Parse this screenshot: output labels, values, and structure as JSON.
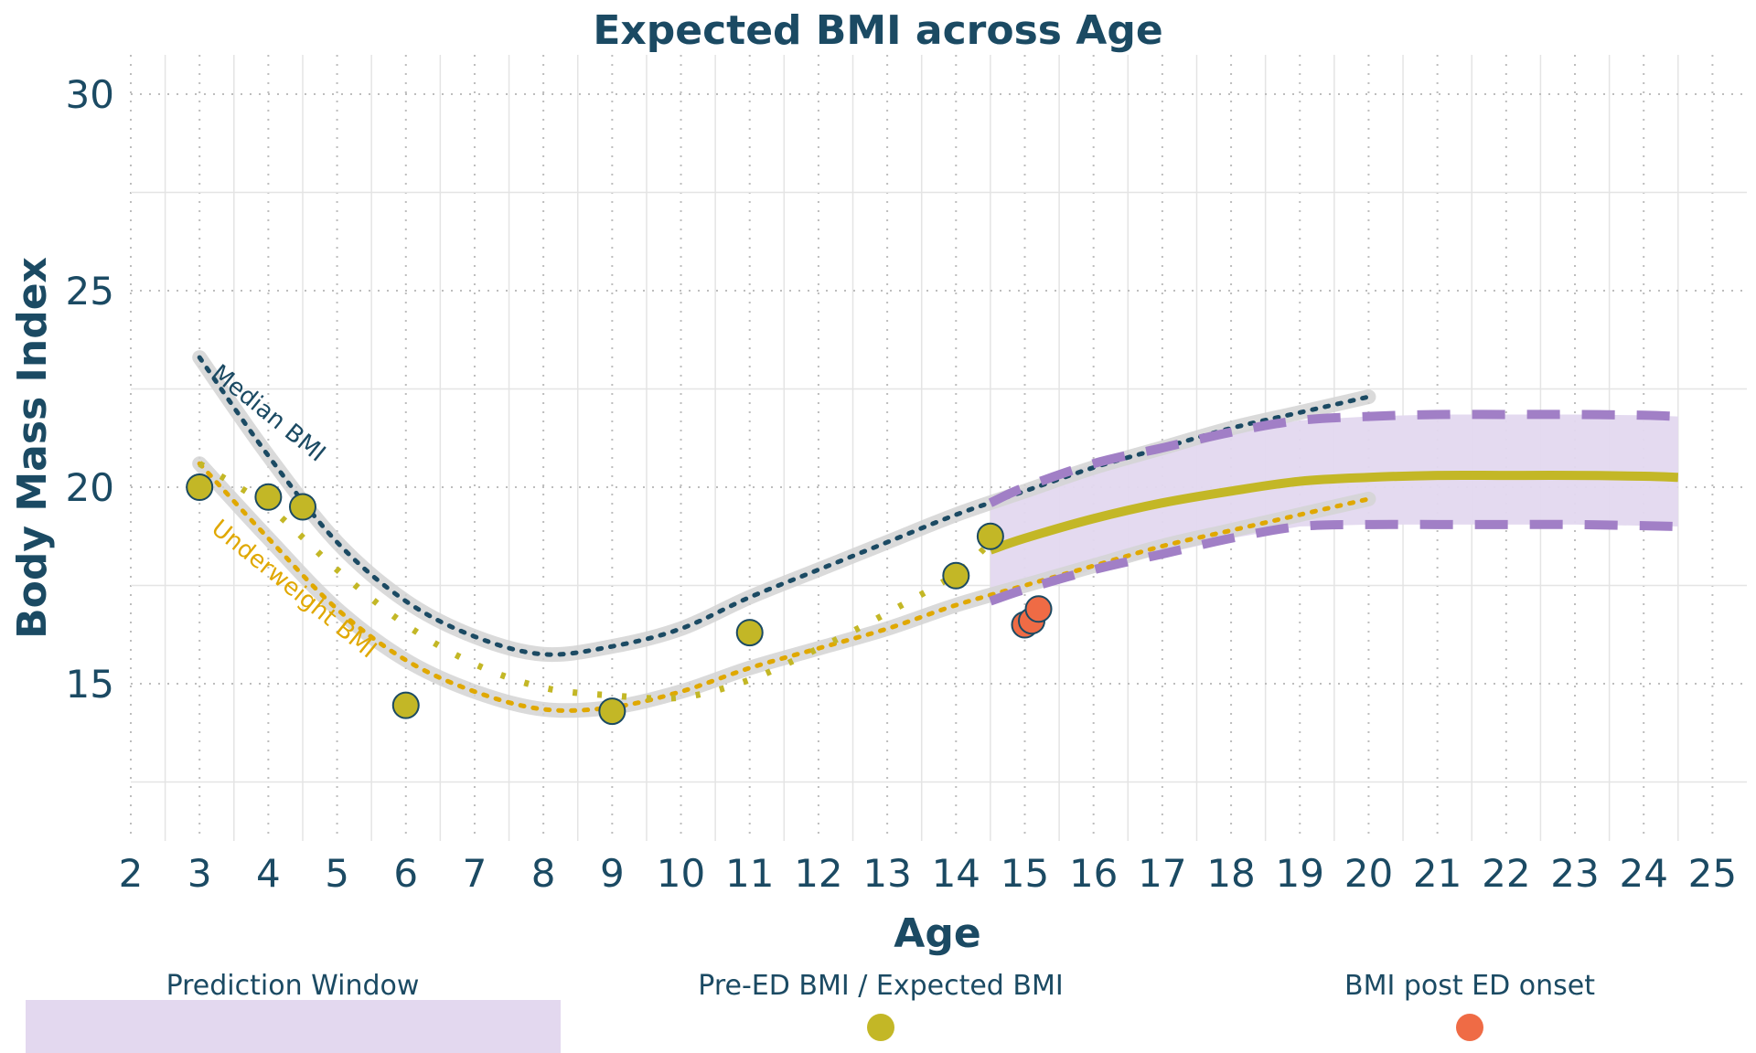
{
  "chart_data": {
    "type": "line",
    "title": "Expected BMI across Age",
    "xlabel": "Age",
    "ylabel": "Body Mass Index",
    "xlim": [
      2,
      25.5
    ],
    "ylim": [
      11,
      31
    ],
    "x_ticks": [
      2,
      3,
      4,
      5,
      6,
      7,
      8,
      9,
      10,
      11,
      12,
      13,
      14,
      15,
      16,
      17,
      18,
      19,
      20,
      21,
      22,
      23,
      24,
      25
    ],
    "y_ticks": [
      15,
      20,
      25,
      30
    ],
    "grid": true,
    "colors": {
      "text": "#1b4a63",
      "median": "#1b4a63",
      "underweight": "#e0a800",
      "pre_ed": "#c3b726",
      "post_ed": "#ef6b45",
      "window_fill": "#e3d8ef",
      "window_border": "#a17fc6",
      "ribbon": "#d3d3d3"
    },
    "curve_labels": {
      "median": "Median BMI",
      "underweight": "Underweight BMI"
    },
    "median_bmi": {
      "x": [
        3,
        4,
        5,
        6,
        7,
        8,
        9,
        10,
        11,
        12,
        13,
        14,
        15,
        16,
        17,
        18,
        19,
        20
      ],
      "y": [
        23.3,
        20.8,
        18.6,
        17.1,
        16.2,
        15.75,
        15.95,
        16.4,
        17.2,
        17.9,
        18.6,
        19.3,
        19.9,
        20.5,
        21.0,
        21.5,
        21.9,
        22.3
      ]
    },
    "underweight_bmi": {
      "x": [
        3,
        4,
        5,
        6,
        7,
        8,
        9,
        10,
        11,
        12,
        13,
        14,
        15,
        16,
        17,
        18,
        19,
        20
      ],
      "y": [
        20.6,
        18.7,
        16.9,
        15.6,
        14.8,
        14.35,
        14.4,
        14.8,
        15.4,
        15.9,
        16.4,
        17.0,
        17.5,
        18.0,
        18.5,
        18.9,
        19.3,
        19.7
      ]
    },
    "expected_trajectory": {
      "x": [
        3,
        4,
        5,
        6,
        7,
        8,
        9,
        10,
        11,
        12,
        13,
        14,
        14.5
      ],
      "y": [
        20.6,
        19.5,
        17.9,
        16.5,
        15.5,
        14.9,
        14.7,
        14.65,
        15.1,
        15.9,
        16.8,
        17.8,
        18.6
      ]
    },
    "prediction_window": {
      "x": [
        14.5,
        15,
        16,
        17,
        18,
        19,
        20,
        21,
        22,
        23,
        24,
        24.5
      ],
      "expected": [
        18.4,
        18.7,
        19.2,
        19.6,
        19.9,
        20.15,
        20.25,
        20.3,
        20.3,
        20.3,
        20.28,
        20.25
      ],
      "upper": [
        19.6,
        20.0,
        20.6,
        21.0,
        21.4,
        21.7,
        21.8,
        21.85,
        21.85,
        21.85,
        21.83,
        21.8
      ],
      "lower": [
        17.1,
        17.4,
        17.9,
        18.3,
        18.7,
        19.0,
        19.05,
        19.05,
        19.05,
        19.05,
        19.02,
        19.0
      ]
    },
    "series": [
      {
        "name": "Pre-ED BMI / Expected BMI",
        "points": [
          {
            "x": 3,
            "y": 20.0
          },
          {
            "x": 4,
            "y": 19.75
          },
          {
            "x": 4.5,
            "y": 19.5
          },
          {
            "x": 6,
            "y": 14.45
          },
          {
            "x": 9,
            "y": 14.3
          },
          {
            "x": 11,
            "y": 16.3
          },
          {
            "x": 14,
            "y": 17.75
          },
          {
            "x": 14.5,
            "y": 18.75
          }
        ]
      },
      {
        "name": "BMI post ED onset",
        "points": [
          {
            "x": 15.0,
            "y": 16.5
          },
          {
            "x": 15.1,
            "y": 16.6
          },
          {
            "x": 15.2,
            "y": 16.9
          }
        ]
      }
    ],
    "legend": {
      "placement": "bottom",
      "items": [
        {
          "label": "Prediction Window",
          "kind": "fill"
        },
        {
          "label": "Pre-ED BMI / Expected BMI",
          "kind": "pre_ed_point"
        },
        {
          "label": "BMI post ED onset",
          "kind": "post_ed_point"
        }
      ]
    }
  }
}
